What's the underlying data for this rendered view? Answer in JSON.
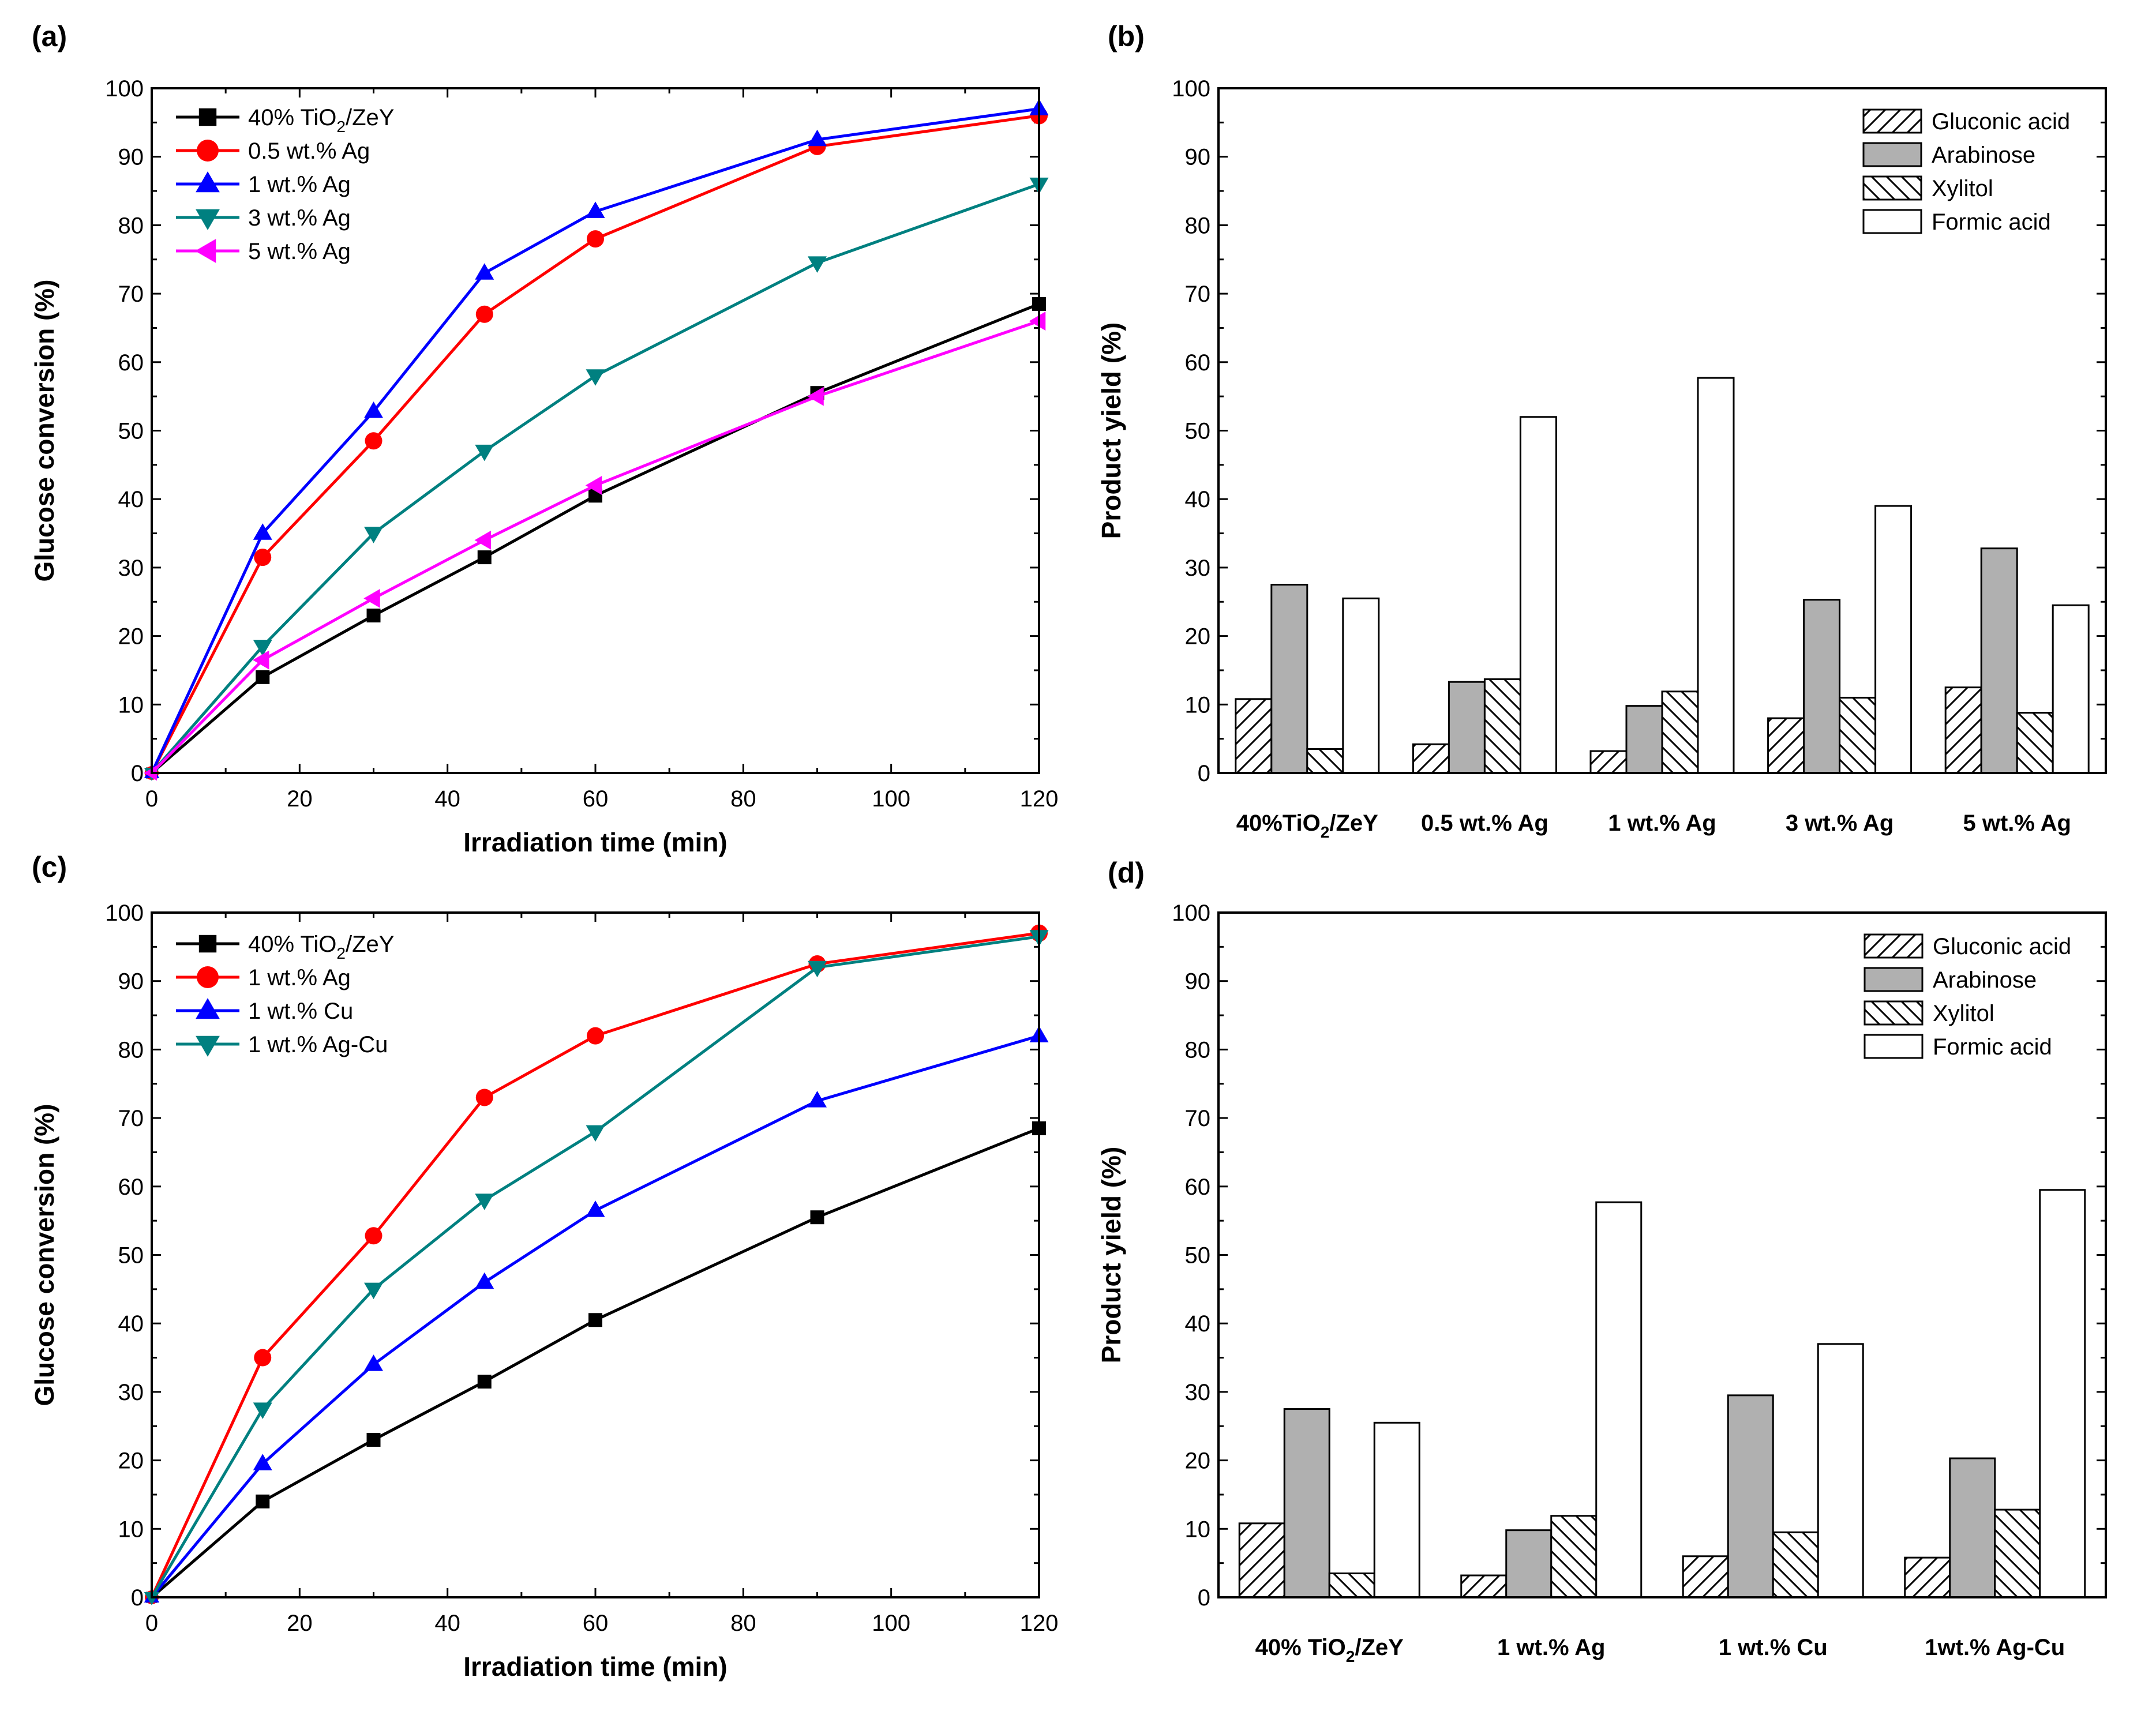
{
  "chart_data": [
    {
      "panel": "(a)",
      "type": "line",
      "xlabel": "Irradiation time (min)",
      "ylabel": "Glucose conversion (%)",
      "xlim": [
        0,
        120
      ],
      "ylim": [
        0,
        100
      ],
      "xticks": [
        0,
        20,
        40,
        60,
        80,
        100,
        120
      ],
      "yticks": [
        0,
        10,
        20,
        30,
        40,
        50,
        60,
        70,
        80,
        90,
        100
      ],
      "x": [
        0,
        15,
        30,
        45,
        60,
        90,
        120
      ],
      "legend_position": "top-left",
      "series": [
        {
          "name": "40% TiO",
          "sub": "2",
          "tail": "/ZeY",
          "color": "#000000",
          "marker": "square",
          "values": [
            0,
            14,
            23,
            31.5,
            40.5,
            55.5,
            68.5
          ]
        },
        {
          "name": "0.5 wt.% Ag",
          "color": "#ff0000",
          "marker": "circle",
          "values": [
            0,
            31.5,
            48.5,
            67,
            78,
            91.5,
            96
          ]
        },
        {
          "name": "1 wt.% Ag",
          "color": "#0000ff",
          "marker": "triangle-up",
          "values": [
            0,
            35,
            52.8,
            73,
            82,
            92.5,
            97
          ]
        },
        {
          "name": "3 wt.% Ag",
          "color": "#008080",
          "marker": "triangle-down",
          "values": [
            0,
            18.5,
            35,
            47,
            58,
            74.5,
            86
          ]
        },
        {
          "name": "5 wt.% Ag",
          "color": "#ff00ff",
          "marker": "triangle-left",
          "values": [
            0,
            16.5,
            25.5,
            34,
            42,
            55,
            66
          ]
        }
      ]
    },
    {
      "panel": "(b)",
      "type": "bar",
      "ylabel": "Product yield (%)",
      "ylim": [
        0,
        100
      ],
      "yticks": [
        0,
        10,
        20,
        30,
        40,
        50,
        60,
        70,
        80,
        90,
        100
      ],
      "legend_position": "top-right",
      "categories": [
        {
          "label": "40%TiO",
          "sub": "2",
          "tail": "/ZeY"
        },
        {
          "label": "0.5 wt.% Ag",
          "sub": "",
          "tail": ""
        },
        {
          "label": "1 wt.% Ag",
          "sub": "",
          "tail": ""
        },
        {
          "label": "3 wt.% Ag",
          "sub": "",
          "tail": ""
        },
        {
          "label": "5 wt.% Ag",
          "sub": "",
          "tail": ""
        }
      ],
      "series": [
        {
          "name": "Gluconic acid",
          "pattern": "hatch-forward",
          "values": [
            10.8,
            4.2,
            3.2,
            8,
            12.5
          ]
        },
        {
          "name": "Arabinose",
          "pattern": "gray",
          "values": [
            27.5,
            13.3,
            9.8,
            25.3,
            32.8
          ]
        },
        {
          "name": "Xylitol",
          "pattern": "hatch-back",
          "values": [
            3.5,
            13.7,
            11.9,
            11,
            8.8
          ]
        },
        {
          "name": "Formic acid",
          "pattern": "white",
          "values": [
            25.5,
            52,
            57.7,
            39,
            24.5
          ]
        }
      ]
    },
    {
      "panel": "(c)",
      "type": "line",
      "xlabel": "Irradiation time (min)",
      "ylabel": "Glucose conversion (%)",
      "xlim": [
        0,
        120
      ],
      "ylim": [
        0,
        100
      ],
      "xticks": [
        0,
        20,
        40,
        60,
        80,
        100,
        120
      ],
      "yticks": [
        0,
        10,
        20,
        30,
        40,
        50,
        60,
        70,
        80,
        90,
        100
      ],
      "x": [
        0,
        15,
        30,
        45,
        60,
        90,
        120
      ],
      "legend_position": "top-left",
      "series": [
        {
          "name": "40% TiO",
          "sub": "2",
          "tail": "/ZeY",
          "color": "#000000",
          "marker": "square",
          "values": [
            0,
            14,
            23,
            31.5,
            40.5,
            55.5,
            68.5
          ]
        },
        {
          "name": "1 wt.% Ag",
          "color": "#ff0000",
          "marker": "circle",
          "values": [
            0,
            35,
            52.8,
            73,
            82,
            92.5,
            97
          ]
        },
        {
          "name": "1 wt.% Cu",
          "color": "#0000ff",
          "marker": "triangle-up",
          "values": [
            0,
            19.5,
            34,
            46,
            56.5,
            72.5,
            82
          ]
        },
        {
          "name": "1 wt.% Ag-Cu",
          "color": "#008080",
          "marker": "triangle-down",
          "values": [
            0,
            27.5,
            45,
            58,
            68,
            92,
            96.5
          ]
        }
      ]
    },
    {
      "panel": "(d)",
      "type": "bar",
      "ylabel": "Product yield (%)",
      "ylim": [
        0,
        100
      ],
      "yticks": [
        0,
        10,
        20,
        30,
        40,
        50,
        60,
        70,
        80,
        90,
        100
      ],
      "legend_position": "top-right",
      "categories": [
        {
          "label": "40% TiO",
          "sub": "2",
          "tail": "/ZeY"
        },
        {
          "label": "1 wt.% Ag",
          "sub": "",
          "tail": ""
        },
        {
          "label": "1 wt.% Cu",
          "sub": "",
          "tail": ""
        },
        {
          "label": "1wt.% Ag-Cu",
          "sub": "",
          "tail": ""
        }
      ],
      "series": [
        {
          "name": "Gluconic acid",
          "pattern": "hatch-forward",
          "values": [
            10.8,
            3.2,
            6,
            5.8
          ]
        },
        {
          "name": "Arabinose",
          "pattern": "gray",
          "values": [
            27.5,
            9.8,
            29.5,
            20.3
          ]
        },
        {
          "name": "Xylitol",
          "pattern": "hatch-back",
          "values": [
            3.5,
            11.9,
            9.5,
            12.8
          ]
        },
        {
          "name": "Formic acid",
          "pattern": "white",
          "values": [
            25.5,
            57.7,
            37,
            59.5
          ]
        }
      ]
    }
  ]
}
